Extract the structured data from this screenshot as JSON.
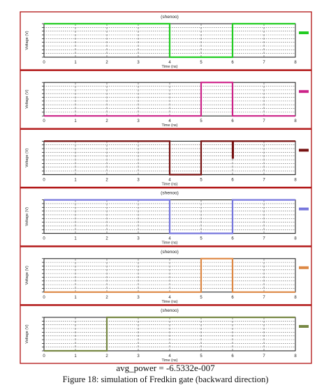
{
  "caption": {
    "power_label": "avg_power =",
    "power_value": "-6.5332e-007",
    "figure_title": "Figure 18: simulation of Fredkin gate (backward direction)"
  },
  "chart_data": [
    {
      "type": "line",
      "panel_title": "(shenoo)",
      "xlabel": "Time (ns)",
      "ylabel": "Voltage (V)",
      "x_ticks": [
        "0",
        "1",
        "2",
        "3",
        "4",
        "5",
        "6",
        "7",
        "8"
      ],
      "xlim": [
        0,
        8
      ],
      "ylim": [
        0,
        1.2
      ],
      "series": [
        {
          "legend": "",
          "color": "#22cc22",
          "x": [
            0,
            4,
            4,
            6,
            6,
            8
          ],
          "y": [
            1.2,
            1.2,
            0,
            0,
            1.2,
            1.2
          ]
        }
      ]
    },
    {
      "type": "line",
      "panel_title": "",
      "xlabel": "Time (ns)",
      "ylabel": "Voltage (V)",
      "x_ticks": [
        "0",
        "1",
        "2",
        "3",
        "4",
        "5",
        "6",
        "7",
        "8"
      ],
      "xlim": [
        0,
        8
      ],
      "ylim": [
        0,
        1.2
      ],
      "series": [
        {
          "legend": "",
          "color": "#cc2288",
          "x": [
            0,
            5,
            5,
            6,
            6,
            8
          ],
          "y": [
            0,
            0,
            1.2,
            1.2,
            0,
            0
          ]
        }
      ]
    },
    {
      "type": "line",
      "panel_title": "",
      "xlabel": "Time (ns)",
      "ylabel": "Voltage (V)",
      "x_ticks": [
        "0",
        "1",
        "2",
        "3",
        "4",
        "5",
        "6",
        "7",
        "8"
      ],
      "xlim": [
        0,
        8
      ],
      "ylim": [
        0,
        1.2
      ],
      "series": [
        {
          "legend": "",
          "color": "#771111",
          "x": [
            0,
            4,
            4,
            5,
            5,
            6,
            6,
            6.02,
            6.02,
            8
          ],
          "y": [
            1.2,
            1.2,
            0,
            0,
            1.2,
            1.2,
            0.6,
            0.6,
            1.2,
            1.2
          ]
        }
      ]
    },
    {
      "type": "line",
      "panel_title": "(shenoo)",
      "xlabel": "Time (ns)",
      "ylabel": "Voltage (V)",
      "x_ticks": [
        "0",
        "1",
        "2",
        "3",
        "4",
        "5",
        "6",
        "7",
        "8"
      ],
      "xlim": [
        0,
        8
      ],
      "ylim": [
        0,
        1.2
      ],
      "series": [
        {
          "legend": "",
          "color": "#7777dd",
          "x": [
            0,
            4,
            4,
            6,
            6,
            8
          ],
          "y": [
            1.2,
            1.2,
            0,
            0,
            1.2,
            1.2
          ]
        }
      ]
    },
    {
      "type": "line",
      "panel_title": "(shenoo)",
      "xlabel": "Time (ns)",
      "ylabel": "Voltage (V)",
      "x_ticks": [
        "0",
        "1",
        "2",
        "3",
        "4",
        "5",
        "6",
        "7",
        "8"
      ],
      "xlim": [
        0,
        8
      ],
      "ylim": [
        0,
        1.2
      ],
      "series": [
        {
          "legend": "",
          "color": "#dd8844",
          "x": [
            0,
            5,
            5,
            6,
            6,
            8
          ],
          "y": [
            0,
            0,
            1.2,
            1.2,
            0,
            0
          ]
        }
      ]
    },
    {
      "type": "line",
      "panel_title": "(shenoo)",
      "xlabel": "Time (ns)",
      "ylabel": "Voltage (V)",
      "x_ticks": [
        "0",
        "1",
        "2",
        "3",
        "4",
        "5",
        "6",
        "7",
        "8"
      ],
      "xlim": [
        0,
        8
      ],
      "ylim": [
        0,
        1.2
      ],
      "series": [
        {
          "legend": "",
          "color": "#778844",
          "x": [
            0,
            2,
            2,
            8
          ],
          "y": [
            0,
            0,
            1.2,
            1.2
          ]
        }
      ]
    }
  ]
}
